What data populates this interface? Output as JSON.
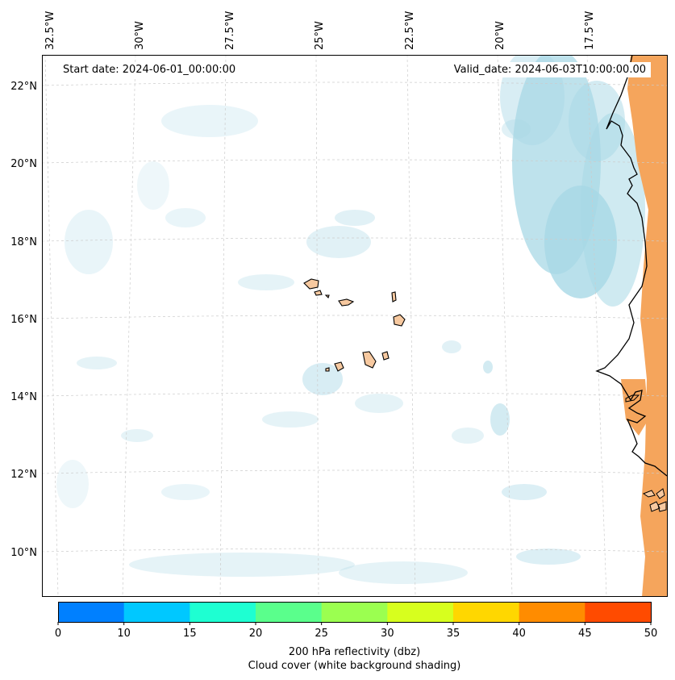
{
  "header": {
    "start_date": "Start date: 2024-06-01_00:00:00",
    "valid_date": "Valid_date: 2024-06-03T10:00:00.00"
  },
  "map": {
    "lon_ticks": [
      "32.5°W",
      "30°W",
      "27.5°W",
      "25°W",
      "22.5°W",
      "20°W",
      "17.5°W"
    ],
    "lat_ticks": [
      "22°N",
      "20°N",
      "18°N",
      "16°N",
      "14°N",
      "12°N",
      "10°N"
    ],
    "colors": {
      "cloud": "#a8d8e6",
      "land_reflectivity": "#f5a55c",
      "island_fill": "#f7c9a0",
      "gridline": "#cccccc"
    }
  },
  "colorbar": {
    "bins": [
      {
        "from": 0,
        "to": 10,
        "color": "#0080ff"
      },
      {
        "from": 10,
        "to": 15,
        "color": "#00c8ff"
      },
      {
        "from": 15,
        "to": 20,
        "color": "#1effd2"
      },
      {
        "from": 20,
        "to": 25,
        "color": "#5aff8c"
      },
      {
        "from": 25,
        "to": 30,
        "color": "#9bff50"
      },
      {
        "from": 30,
        "to": 35,
        "color": "#d7ff1e"
      },
      {
        "from": 35,
        "to": 40,
        "color": "#ffd700"
      },
      {
        "from": 40,
        "to": 45,
        "color": "#ff8c00"
      },
      {
        "from": 45,
        "to": 50,
        "color": "#ff4b00"
      }
    ],
    "tick_labels": [
      "0",
      "10",
      "15",
      "20",
      "25",
      "30",
      "35",
      "40",
      "45",
      "50"
    ],
    "label_line1": "200 hPa reflectivity (dbz)",
    "label_line2": "Cloud cover (white background shading)"
  }
}
